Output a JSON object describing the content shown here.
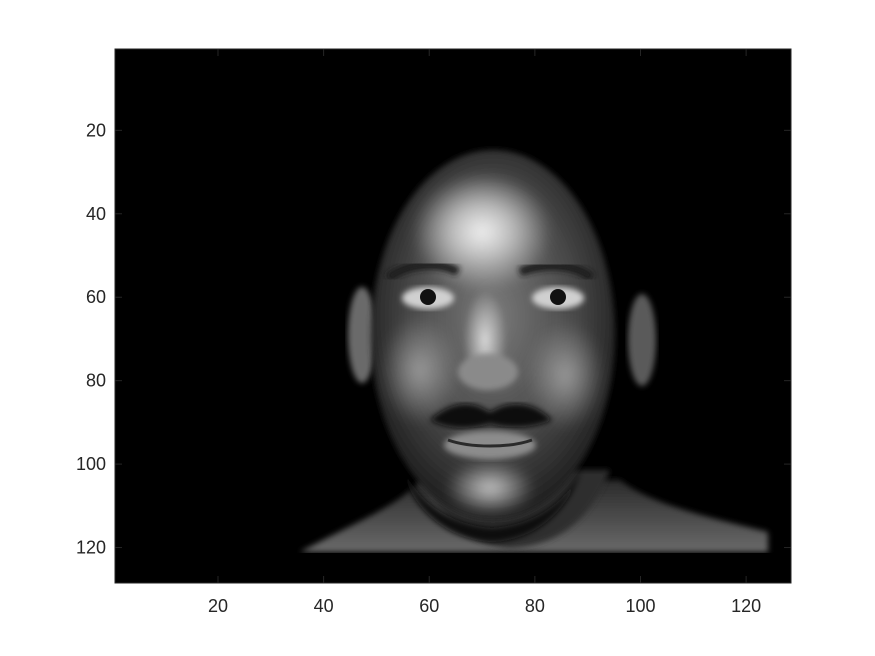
{
  "figure": {
    "image_description_name": "grayscale-face-image",
    "colormap": "gray",
    "background_color": "#ffffff",
    "image_background_color": "#000000"
  },
  "axes": {
    "x": {
      "range": [
        0.5,
        128.5
      ],
      "ticks": [
        20,
        40,
        60,
        80,
        100,
        120
      ]
    },
    "y": {
      "range": [
        0.5,
        128.5
      ],
      "ticks": [
        20,
        40,
        60,
        80,
        100,
        120
      ],
      "reversed": true
    },
    "tick_labels_x": [
      "20",
      "40",
      "60",
      "80",
      "100",
      "120"
    ],
    "tick_labels_y": [
      "20",
      "40",
      "60",
      "80",
      "100",
      "120"
    ],
    "box_color": "#262626"
  }
}
